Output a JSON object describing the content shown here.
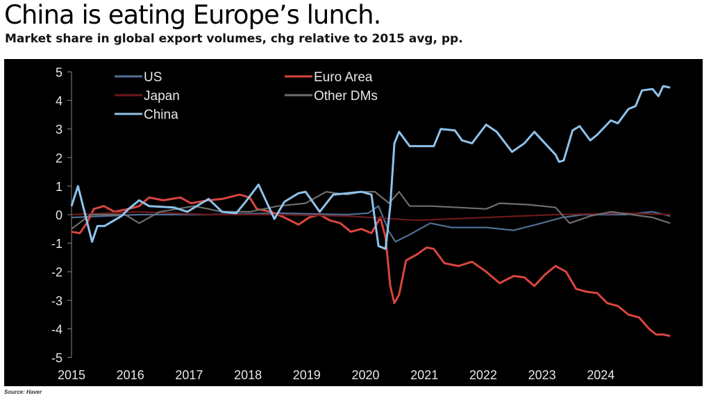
{
  "header": {
    "title": "China is eating Europe’s lunch.",
    "subtitle": "Market share in global export volumes, chg relative to 2015 avg, pp."
  },
  "footer": {
    "source": "Source: Haver"
  },
  "chart_data": {
    "type": "line",
    "title": "China is eating Europe’s lunch.",
    "subtitle": "Market share in global export volumes, chg relative to 2015 avg, pp.",
    "xlabel": "",
    "ylabel": "",
    "xlim": [
      2015,
      2025.2
    ],
    "ylim": [
      -5,
      5
    ],
    "xticks": [
      "2015",
      "2016",
      "2017",
      "2018",
      "2019",
      "2020",
      "2021",
      "2022",
      "2023",
      "2024"
    ],
    "yticks": [
      "5",
      "4",
      "3",
      "2",
      "1",
      "0",
      "-1",
      "-2",
      "-3",
      "-4",
      "-5"
    ],
    "legend_position": "top-left",
    "series": [
      {
        "name": "US",
        "color": "#4f6f95",
        "points": [
          [
            2015,
            -0.1
          ],
          [
            2016.15,
            0
          ],
          [
            2017.33,
            0
          ],
          [
            2018.51,
            0.05
          ],
          [
            2019.69,
            0
          ],
          [
            2020.04,
            0.05
          ],
          [
            2020.22,
            0.3
          ],
          [
            2020.4,
            -0.6
          ],
          [
            2020.51,
            -0.95
          ],
          [
            2020.75,
            -0.7
          ],
          [
            2021.1,
            -0.3
          ],
          [
            2021.46,
            -0.45
          ],
          [
            2022.05,
            -0.45
          ],
          [
            2022.52,
            -0.55
          ],
          [
            2022.99,
            -0.3
          ],
          [
            2023.35,
            -0.1
          ],
          [
            2023.7,
            0
          ],
          [
            2024.41,
            0
          ],
          [
            2024.88,
            0.1
          ],
          [
            2025.18,
            -0.05
          ]
        ]
      },
      {
        "name": "Euro Area",
        "color": "#d9463f",
        "points": [
          [
            2015,
            -0.6
          ],
          [
            2015.14,
            -0.65
          ],
          [
            2015.26,
            -0.3
          ],
          [
            2015.38,
            0.2
          ],
          [
            2015.55,
            0.3
          ],
          [
            2015.73,
            0.1
          ],
          [
            2015.97,
            0.2
          ],
          [
            2016.15,
            0.3
          ],
          [
            2016.32,
            0.6
          ],
          [
            2016.56,
            0.5
          ],
          [
            2016.85,
            0.6
          ],
          [
            2017.03,
            0.4
          ],
          [
            2017.33,
            0.5
          ],
          [
            2017.56,
            0.55
          ],
          [
            2017.86,
            0.7
          ],
          [
            2018.03,
            0.6
          ],
          [
            2018.15,
            0.2
          ],
          [
            2018.39,
            0.1
          ],
          [
            2018.62,
            -0.1
          ],
          [
            2018.86,
            -0.35
          ],
          [
            2019.04,
            -0.1
          ],
          [
            2019.22,
            0
          ],
          [
            2019.39,
            -0.2
          ],
          [
            2019.57,
            -0.3
          ],
          [
            2019.75,
            -0.6
          ],
          [
            2019.93,
            -0.5
          ],
          [
            2020.1,
            -0.65
          ],
          [
            2020.25,
            -0.1
          ],
          [
            2020.34,
            -0.8
          ],
          [
            2020.42,
            -2.5
          ],
          [
            2020.49,
            -3.1
          ],
          [
            2020.57,
            -2.8
          ],
          [
            2020.69,
            -1.6
          ],
          [
            2020.87,
            -1.4
          ],
          [
            2021.04,
            -1.15
          ],
          [
            2021.16,
            -1.2
          ],
          [
            2021.34,
            -1.7
          ],
          [
            2021.58,
            -1.8
          ],
          [
            2021.81,
            -1.65
          ],
          [
            2022.05,
            -2.0
          ],
          [
            2022.28,
            -2.4
          ],
          [
            2022.52,
            -2.15
          ],
          [
            2022.7,
            -2.2
          ],
          [
            2022.87,
            -2.5
          ],
          [
            2023.05,
            -2.1
          ],
          [
            2023.23,
            -1.8
          ],
          [
            2023.41,
            -2.0
          ],
          [
            2023.58,
            -2.6
          ],
          [
            2023.76,
            -2.7
          ],
          [
            2023.94,
            -2.75
          ],
          [
            2024.11,
            -3.1
          ],
          [
            2024.29,
            -3.2
          ],
          [
            2024.47,
            -3.5
          ],
          [
            2024.65,
            -3.6
          ],
          [
            2024.82,
            -4.0
          ],
          [
            2024.94,
            -4.2
          ],
          [
            2025.06,
            -4.2
          ],
          [
            2025.18,
            -4.25
          ]
        ]
      },
      {
        "name": "Japan",
        "color": "#6b1a1a",
        "points": [
          [
            2015,
            0
          ],
          [
            2016.15,
            0.1
          ],
          [
            2017.33,
            0
          ],
          [
            2018.51,
            0
          ],
          [
            2019.69,
            -0.05
          ],
          [
            2020.87,
            -0.2
          ],
          [
            2022.05,
            -0.1
          ],
          [
            2023.23,
            0
          ],
          [
            2024.41,
            0.05
          ],
          [
            2025.18,
            0
          ]
        ]
      },
      {
        "name": "Other DMs",
        "color": "#6e6e6e",
        "points": [
          [
            2015,
            -0.5
          ],
          [
            2015.32,
            0
          ],
          [
            2015.91,
            0
          ],
          [
            2016.15,
            -0.3
          ],
          [
            2016.5,
            0.1
          ],
          [
            2017.09,
            0.3
          ],
          [
            2017.56,
            0.1
          ],
          [
            2018.03,
            0.1
          ],
          [
            2018.51,
            0.3
          ],
          [
            2018.98,
            0.4
          ],
          [
            2019.33,
            0.8
          ],
          [
            2019.69,
            0.7
          ],
          [
            2019.93,
            0.8
          ],
          [
            2020.16,
            0.8
          ],
          [
            2020.4,
            0.4
          ],
          [
            2020.57,
            0.8
          ],
          [
            2020.75,
            0.3
          ],
          [
            2021.1,
            0.3
          ],
          [
            2021.58,
            0.25
          ],
          [
            2022.05,
            0.2
          ],
          [
            2022.28,
            0.4
          ],
          [
            2022.76,
            0.35
          ],
          [
            2023.23,
            0.25
          ],
          [
            2023.47,
            -0.3
          ],
          [
            2023.82,
            -0.05
          ],
          [
            2024.17,
            0.1
          ],
          [
            2024.53,
            0
          ],
          [
            2024.88,
            -0.1
          ],
          [
            2025.18,
            -0.3
          ]
        ]
      },
      {
        "name": "China",
        "color": "#8fc3ec",
        "points": [
          [
            2015,
            0.3
          ],
          [
            2015.11,
            1.0
          ],
          [
            2015.35,
            -0.95
          ],
          [
            2015.44,
            -0.4
          ],
          [
            2015.56,
            -0.4
          ],
          [
            2015.85,
            -0.05
          ],
          [
            2015.97,
            0.2
          ],
          [
            2016.15,
            0.5
          ],
          [
            2016.32,
            0.3
          ],
          [
            2016.74,
            0.25
          ],
          [
            2016.97,
            0.1
          ],
          [
            2017.33,
            0.55
          ],
          [
            2017.56,
            0.1
          ],
          [
            2017.8,
            0.05
          ],
          [
            2017.98,
            0.5
          ],
          [
            2018.18,
            1.05
          ],
          [
            2018.45,
            -0.15
          ],
          [
            2018.62,
            0.45
          ],
          [
            2018.86,
            0.75
          ],
          [
            2018.98,
            0.8
          ],
          [
            2019.22,
            0.1
          ],
          [
            2019.45,
            0.7
          ],
          [
            2019.69,
            0.75
          ],
          [
            2019.93,
            0.8
          ],
          [
            2020.1,
            0.7
          ],
          [
            2020.22,
            -1.1
          ],
          [
            2020.34,
            -1.2
          ],
          [
            2020.42,
            0.3
          ],
          [
            2020.49,
            2.5
          ],
          [
            2020.57,
            2.9
          ],
          [
            2020.75,
            2.4
          ],
          [
            2020.93,
            2.4
          ],
          [
            2021.16,
            2.4
          ],
          [
            2021.28,
            3.0
          ],
          [
            2021.52,
            2.95
          ],
          [
            2021.64,
            2.6
          ],
          [
            2021.81,
            2.5
          ],
          [
            2022.05,
            3.15
          ],
          [
            2022.23,
            2.9
          ],
          [
            2022.49,
            2.2
          ],
          [
            2022.7,
            2.5
          ],
          [
            2022.87,
            2.9
          ],
          [
            2023.05,
            2.5
          ],
          [
            2023.23,
            2.1
          ],
          [
            2023.29,
            1.85
          ],
          [
            2023.37,
            1.9
          ],
          [
            2023.52,
            2.95
          ],
          [
            2023.64,
            3.1
          ],
          [
            2023.82,
            2.6
          ],
          [
            2023.94,
            2.8
          ],
          [
            2024.17,
            3.3
          ],
          [
            2024.29,
            3.2
          ],
          [
            2024.47,
            3.7
          ],
          [
            2024.59,
            3.8
          ],
          [
            2024.7,
            4.35
          ],
          [
            2024.88,
            4.4
          ],
          [
            2024.98,
            4.15
          ],
          [
            2025.06,
            4.5
          ],
          [
            2025.18,
            4.45
          ]
        ]
      }
    ]
  }
}
